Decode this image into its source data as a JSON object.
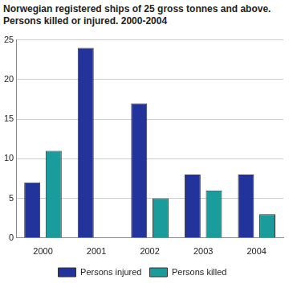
{
  "chart_data": {
    "type": "bar",
    "title": "Norwegian registered ships of 25 gross tonnes and above. Persons killed or injured. 2000-2004",
    "categories": [
      "2000",
      "2001",
      "2002",
      "2003",
      "2004"
    ],
    "series": [
      {
        "name": "Persons injured",
        "color": "#22349c",
        "values": [
          7,
          24,
          17,
          8,
          8
        ]
      },
      {
        "name": "Persons killed",
        "color": "#1a9c9c",
        "values": [
          11,
          0,
          5,
          6,
          3
        ]
      }
    ],
    "ylim": [
      0,
      25
    ],
    "yticks": [
      0,
      5,
      10,
      15,
      20,
      25
    ],
    "grid": true,
    "legend": "bottom"
  }
}
